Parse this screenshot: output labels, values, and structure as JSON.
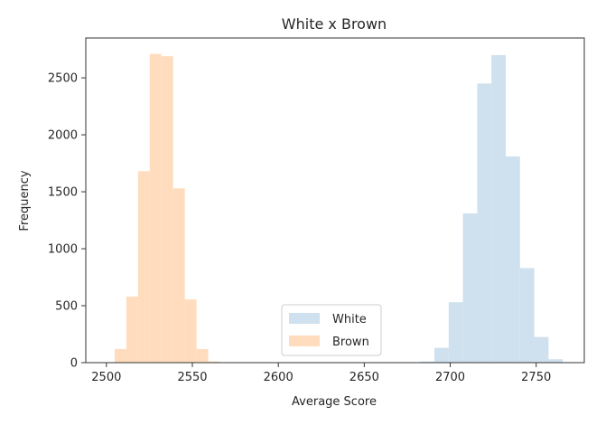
{
  "chart_data": {
    "type": "bar",
    "title": "White x Brown",
    "xlabel": "Average Score",
    "ylabel": "Frequency",
    "xlim": [
      2488,
      2778
    ],
    "ylim": [
      0,
      2850
    ],
    "x_ticks": [
      2500,
      2550,
      2600,
      2650,
      2700,
      2750
    ],
    "y_ticks": [
      0,
      500,
      1000,
      1500,
      2000,
      2500
    ],
    "legend_position": "lower center",
    "grid": false,
    "series": [
      {
        "name": "Brown",
        "color": "#ffdcbd",
        "bin_width": 6.8,
        "bins": [
          {
            "x0": 2498.0,
            "v": 3
          },
          {
            "x0": 2504.8,
            "v": 120
          },
          {
            "x0": 2511.6,
            "v": 580
          },
          {
            "x0": 2518.4,
            "v": 1680
          },
          {
            "x0": 2525.2,
            "v": 2710
          },
          {
            "x0": 2532.0,
            "v": 2690
          },
          {
            "x0": 2538.8,
            "v": 1530
          },
          {
            "x0": 2545.6,
            "v": 555
          },
          {
            "x0": 2552.4,
            "v": 120
          },
          {
            "x0": 2559.2,
            "v": 10
          }
        ]
      },
      {
        "name": "White",
        "color": "#cfe0ee",
        "bin_width": 8.3,
        "bins": [
          {
            "x0": 2682.5,
            "v": 10
          },
          {
            "x0": 2690.8,
            "v": 130
          },
          {
            "x0": 2699.1,
            "v": 530
          },
          {
            "x0": 2707.4,
            "v": 1310
          },
          {
            "x0": 2715.7,
            "v": 2450
          },
          {
            "x0": 2724.0,
            "v": 2700
          },
          {
            "x0": 2732.3,
            "v": 1810
          },
          {
            "x0": 2740.6,
            "v": 830
          },
          {
            "x0": 2748.9,
            "v": 225
          },
          {
            "x0": 2757.2,
            "v": 30
          }
        ]
      }
    ],
    "legend": [
      "White",
      "Brown"
    ]
  }
}
